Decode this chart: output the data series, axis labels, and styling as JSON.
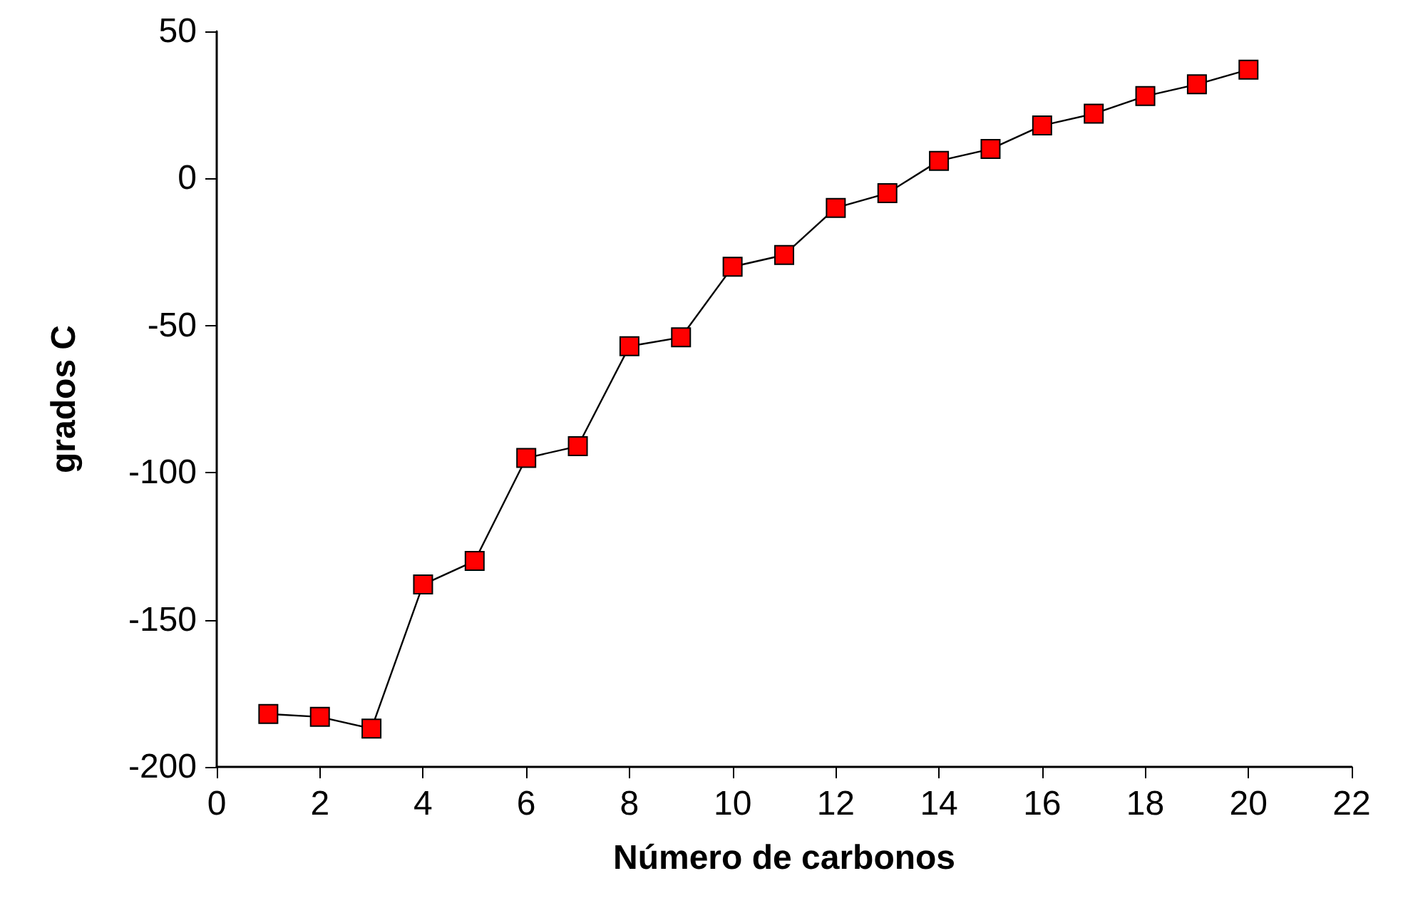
{
  "chart_data": {
    "type": "line",
    "xlabel": "Número de carbonos",
    "ylabel": "grados C",
    "x": [
      1,
      2,
      3,
      4,
      5,
      6,
      7,
      8,
      9,
      10,
      11,
      12,
      13,
      14,
      15,
      16,
      17,
      18,
      19,
      20
    ],
    "series": [
      {
        "color": "#ff0000",
        "values": [
          -182,
          -183,
          -187,
          -138,
          -130,
          -95,
          -91,
          -57,
          -54,
          -30,
          -26,
          -10,
          -5,
          6,
          10,
          18,
          22,
          28,
          32,
          37
        ]
      }
    ],
    "xlim": [
      0,
      22
    ],
    "xticks": [
      0,
      2,
      4,
      6,
      8,
      10,
      12,
      14,
      16,
      18,
      20,
      22
    ],
    "ylim": [
      -200,
      50
    ],
    "yticks": [
      -200,
      -150,
      -100,
      -50,
      0,
      50
    ],
    "grid": false,
    "marker": "square",
    "line_style": "solid"
  }
}
